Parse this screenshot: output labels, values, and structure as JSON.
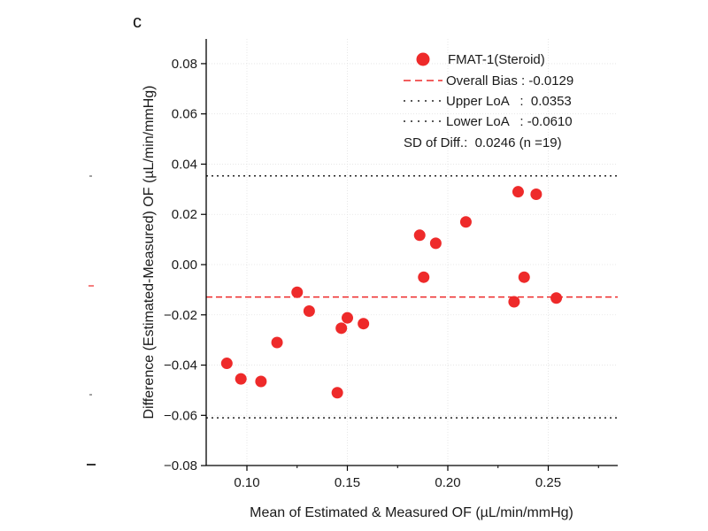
{
  "chart_data": {
    "type": "scatter",
    "panel_label": "c",
    "xlabel": "Mean of Estimated & Measured OF (µL/min/mmHg)",
    "ylabel": "Difference (Estimated-Measured) OF (µL/min/mmHg)",
    "xlim": [
      0.08,
      0.285
    ],
    "ylim": [
      -0.08,
      0.09
    ],
    "x_ticks": [
      0.1,
      0.15,
      0.2,
      0.25
    ],
    "x_tick_labels": [
      "0.10",
      "0.15",
      "0.20",
      "0.25"
    ],
    "y_ticks": [
      -0.08,
      -0.06,
      -0.04,
      -0.02,
      0.0,
      0.02,
      0.04,
      0.06,
      0.08
    ],
    "y_tick_labels": [
      "−0.08",
      "−0.06",
      "−0.04",
      "−0.02",
      "0.00",
      "0.02",
      "0.04",
      "0.06",
      "0.08"
    ],
    "grid": true,
    "legend_position": "top-right",
    "series": [
      {
        "name": "FMAT-1(Steroid)",
        "color": "#ee2a2a",
        "points": [
          {
            "x": 0.09,
            "y": -0.0393
          },
          {
            "x": 0.097,
            "y": -0.0455
          },
          {
            "x": 0.107,
            "y": -0.0465
          },
          {
            "x": 0.115,
            "y": -0.031
          },
          {
            "x": 0.125,
            "y": -0.011
          },
          {
            "x": 0.131,
            "y": -0.0185
          },
          {
            "x": 0.145,
            "y": -0.051
          },
          {
            "x": 0.147,
            "y": -0.0253
          },
          {
            "x": 0.15,
            "y": -0.0212
          },
          {
            "x": 0.158,
            "y": -0.0235
          },
          {
            "x": 0.186,
            "y": 0.0117
          },
          {
            "x": 0.188,
            "y": -0.005
          },
          {
            "x": 0.194,
            "y": 0.0085
          },
          {
            "x": 0.209,
            "y": 0.017
          },
          {
            "x": 0.233,
            "y": -0.0148
          },
          {
            "x": 0.235,
            "y": 0.029
          },
          {
            "x": 0.238,
            "y": -0.005
          },
          {
            "x": 0.244,
            "y": 0.028
          },
          {
            "x": 0.254,
            "y": -0.0133
          }
        ]
      }
    ],
    "reference_lines": [
      {
        "name": "Overall Bias",
        "value": -0.0129,
        "value_text": "-0.0129",
        "style": "dashed",
        "color": "#ee2a2a"
      },
      {
        "name": "Upper LoA",
        "value": 0.0353,
        "value_text": "0.0353",
        "style": "dotted",
        "color": "#222222"
      },
      {
        "name": "Lower LoA",
        "value": -0.061,
        "value_text": "-0.0610",
        "style": "dotted",
        "color": "#222222"
      }
    ],
    "legend": {
      "series_label": "FMAT-1(Steroid)",
      "bias_text": "Overall Bias : -0.0129",
      "upper_text": "Upper LoA   :  0.0353",
      "lower_text": "Lower LoA   : -0.0610",
      "sd_text": "SD of Diff.:  0.0246 (n =19)"
    }
  }
}
